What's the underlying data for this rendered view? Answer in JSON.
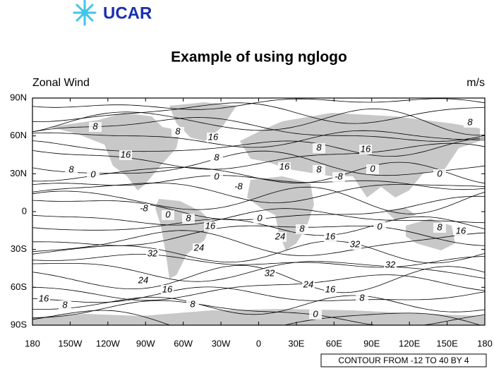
{
  "logo": {
    "text": "UCAR"
  },
  "title": "Example of using nglogo",
  "left_string": "Zonal Wind",
  "right_string": "m/s",
  "x_ticks": [
    {
      "value": -180,
      "label": "180"
    },
    {
      "value": -150,
      "label": "150W"
    },
    {
      "value": -120,
      "label": "120W"
    },
    {
      "value": -90,
      "label": "90W"
    },
    {
      "value": -60,
      "label": "60W"
    },
    {
      "value": -30,
      "label": "30W"
    },
    {
      "value": 0,
      "label": "0"
    },
    {
      "value": 30,
      "label": "30E"
    },
    {
      "value": 60,
      "label": "60E"
    },
    {
      "value": 90,
      "label": "90E"
    },
    {
      "value": 120,
      "label": "120E"
    },
    {
      "value": 150,
      "label": "150E"
    },
    {
      "value": 180,
      "label": "180"
    }
  ],
  "y_ticks": [
    {
      "value": 90,
      "label": "90N"
    },
    {
      "value": 60,
      "label": "60N"
    },
    {
      "value": 30,
      "label": "30N"
    },
    {
      "value": 0,
      "label": "0"
    },
    {
      "value": -30,
      "label": "30S"
    },
    {
      "value": -60,
      "label": "60S"
    },
    {
      "value": -90,
      "label": "90S"
    }
  ],
  "contour_labels": [
    "8",
    "8",
    "16",
    "16",
    "8",
    "8",
    "0",
    "0",
    "-8",
    "8",
    "16",
    "16",
    "8",
    "-8",
    "0",
    "0",
    "8",
    "-8",
    "0",
    "8",
    "16",
    "0",
    "24",
    "8",
    "16",
    "0",
    "8",
    "16",
    "32",
    "24",
    "32",
    "32",
    "32",
    "24",
    "16",
    "24",
    "16",
    "16",
    "8",
    "8",
    "8",
    "0"
  ],
  "info_label": "CONTOUR FROM -12 TO 40 BY 4"
}
